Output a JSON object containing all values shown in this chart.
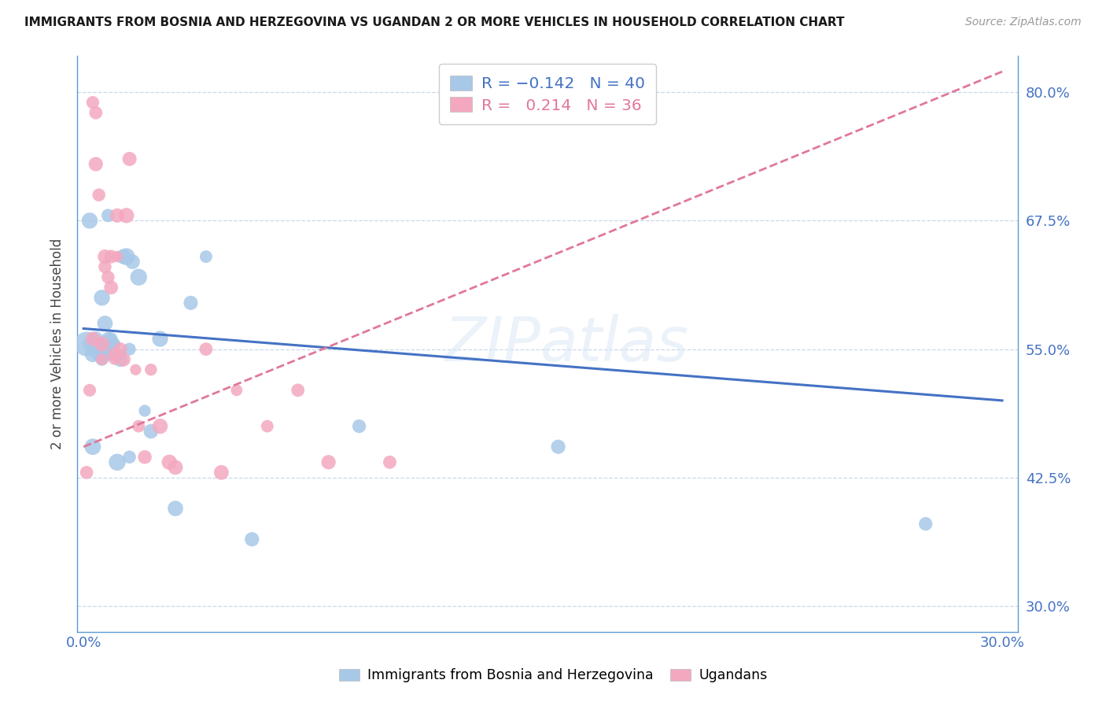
{
  "title": "IMMIGRANTS FROM BOSNIA AND HERZEGOVINA VS UGANDAN 2 OR MORE VEHICLES IN HOUSEHOLD CORRELATION CHART",
  "source": "Source: ZipAtlas.com",
  "ylabel": "2 or more Vehicles in Household",
  "watermark": "ZIPatlas",
  "xlim": [
    -0.002,
    0.305
  ],
  "ylim": [
    0.275,
    0.835
  ],
  "yticks": [
    0.3,
    0.425,
    0.55,
    0.675,
    0.8
  ],
  "ytick_labels": [
    "30.0%",
    "42.5%",
    "55.0%",
    "67.5%",
    "80.0%"
  ],
  "xticks": [
    0.0,
    0.05,
    0.1,
    0.15,
    0.2,
    0.25,
    0.3
  ],
  "xtick_labels": [
    "0.0%",
    "",
    "",
    "",
    "",
    "",
    "30.0%"
  ],
  "blue_R": -0.142,
  "blue_N": 40,
  "pink_R": 0.214,
  "pink_N": 36,
  "blue_label": "Immigrants from Bosnia and Herzegovina",
  "pink_label": "Ugandans",
  "blue_color": "#a8c8e8",
  "pink_color": "#f4a8c0",
  "blue_line_color": "#4472c4",
  "pink_line_color": "#e07898",
  "axis_color": "#5b9bd5",
  "tick_color": "#4472c4",
  "grid_color": "#c8d8ec",
  "blue_line_x": [
    0.0,
    0.3
  ],
  "blue_line_y": [
    0.57,
    0.5
  ],
  "pink_line_x": [
    0.0,
    0.3
  ],
  "pink_line_y": [
    0.455,
    0.82
  ],
  "blue_scatter_x": [
    0.001,
    0.002,
    0.002,
    0.003,
    0.004,
    0.004,
    0.005,
    0.005,
    0.006,
    0.006,
    0.007,
    0.007,
    0.008,
    0.008,
    0.009,
    0.009,
    0.01,
    0.01,
    0.011,
    0.012,
    0.013,
    0.014,
    0.015,
    0.016,
    0.018,
    0.02,
    0.022,
    0.025,
    0.03,
    0.035,
    0.04,
    0.055,
    0.09,
    0.155,
    0.275,
    0.003,
    0.006,
    0.008,
    0.012,
    0.015
  ],
  "blue_scatter_y": [
    0.555,
    0.675,
    0.555,
    0.545,
    0.55,
    0.56,
    0.545,
    0.555,
    0.54,
    0.555,
    0.575,
    0.545,
    0.56,
    0.545,
    0.56,
    0.555,
    0.555,
    0.545,
    0.44,
    0.545,
    0.64,
    0.64,
    0.55,
    0.635,
    0.62,
    0.49,
    0.47,
    0.56,
    0.395,
    0.595,
    0.64,
    0.365,
    0.475,
    0.455,
    0.38,
    0.455,
    0.6,
    0.68,
    0.54,
    0.445
  ],
  "blue_scatter_sizes": [
    120,
    120,
    120,
    120,
    120,
    120,
    120,
    120,
    120,
    120,
    120,
    120,
    120,
    120,
    120,
    120,
    120,
    120,
    120,
    120,
    120,
    120,
    120,
    120,
    120,
    120,
    120,
    120,
    120,
    120,
    120,
    120,
    120,
    120,
    120,
    120,
    120,
    120,
    120,
    120
  ],
  "pink_scatter_x": [
    0.001,
    0.002,
    0.003,
    0.003,
    0.004,
    0.004,
    0.005,
    0.006,
    0.006,
    0.007,
    0.007,
    0.008,
    0.009,
    0.009,
    0.01,
    0.01,
    0.011,
    0.011,
    0.012,
    0.013,
    0.014,
    0.015,
    0.017,
    0.018,
    0.02,
    0.022,
    0.025,
    0.028,
    0.03,
    0.04,
    0.045,
    0.05,
    0.06,
    0.07,
    0.08,
    0.1
  ],
  "pink_scatter_y": [
    0.43,
    0.51,
    0.56,
    0.79,
    0.78,
    0.73,
    0.7,
    0.555,
    0.54,
    0.64,
    0.63,
    0.62,
    0.61,
    0.64,
    0.545,
    0.54,
    0.64,
    0.68,
    0.55,
    0.54,
    0.68,
    0.735,
    0.53,
    0.475,
    0.445,
    0.53,
    0.475,
    0.44,
    0.435,
    0.55,
    0.43,
    0.51,
    0.475,
    0.51,
    0.44,
    0.44
  ],
  "pink_scatter_sizes": [
    120,
    120,
    120,
    120,
    120,
    120,
    120,
    120,
    120,
    120,
    120,
    120,
    120,
    120,
    120,
    120,
    120,
    120,
    120,
    120,
    120,
    120,
    120,
    120,
    120,
    120,
    120,
    120,
    120,
    120,
    120,
    120,
    120,
    120,
    120,
    120
  ]
}
